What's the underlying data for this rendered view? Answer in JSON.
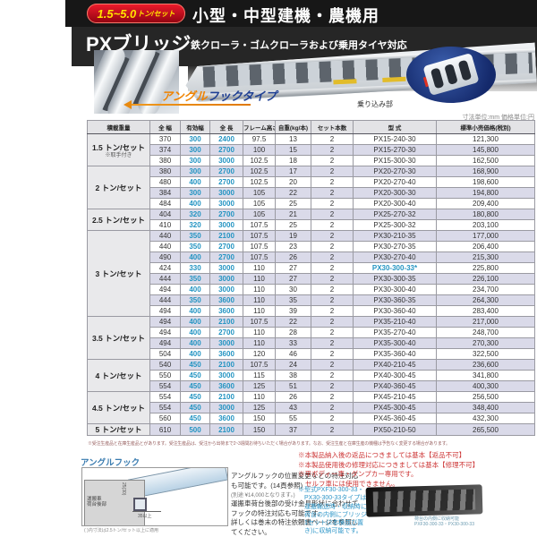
{
  "header": {
    "badge_value": "1.5~5.0",
    "badge_unit": "トン/セット",
    "category": "小型・中型建機・農機用",
    "product_name": "PXブリッジ",
    "subtitle": "鉄クローラ・ゴムクローラおよび乗用タイヤ対応",
    "type_label_orange": "アングル",
    "type_label_blue": "フックタイプ",
    "boarding_label": "乗り込み部",
    "units_note": "寸法単位:mm 価格単位:円"
  },
  "colors": {
    "badge_red": "#c00616",
    "accent_orange": "#f08300",
    "accent_navy": "#1e3f93",
    "table_blue": "#2394c2",
    "stripe_lavender": "#dadae9",
    "note_red": "#cc3333",
    "note_blue": "#2e96c8"
  },
  "table": {
    "headers": [
      "積載重量",
      "全 幅",
      "有効幅",
      "全 長",
      "フレーム高さ",
      "自重(kg/本)",
      "セット本数",
      "型 式",
      "標準小売価格(税別)"
    ],
    "groups": [
      {
        "label": "1.5 トン/セット",
        "note": "※取手付き",
        "rows": [
          [
            "370",
            "300",
            "2400",
            "97.5",
            "13",
            "2",
            "PX15-240-30",
            "121,300"
          ],
          [
            "374",
            "300",
            "2700",
            "100",
            "15",
            "2",
            "PX15-270-30",
            "145,800"
          ],
          [
            "380",
            "300",
            "3000",
            "102.5",
            "18",
            "2",
            "PX15-300-30",
            "162,500"
          ]
        ]
      },
      {
        "label": "2 トン/セット",
        "note": "",
        "rows": [
          [
            "380",
            "300",
            "2700",
            "102.5",
            "17",
            "2",
            "PX20-270-30",
            "168,900"
          ],
          [
            "480",
            "400",
            "2700",
            "102.5",
            "20",
            "2",
            "PX20-270-40",
            "198,600"
          ],
          [
            "384",
            "300",
            "3000",
            "105",
            "22",
            "2",
            "PX20-300-30",
            "194,800"
          ],
          [
            "484",
            "400",
            "3000",
            "105",
            "25",
            "2",
            "PX20-300-40",
            "209,400"
          ]
        ]
      },
      {
        "label": "2.5 トン/セット",
        "note": "",
        "rows": [
          [
            "404",
            "320",
            "2700",
            "105",
            "21",
            "2",
            "PX25-270-32",
            "180,800"
          ],
          [
            "410",
            "320",
            "3000",
            "107.5",
            "25",
            "2",
            "PX25-300-32",
            "203,100"
          ]
        ]
      },
      {
        "label": "3 トン/セット",
        "note": "",
        "rows": [
          [
            "440",
            "350",
            "2100",
            "107.5",
            "19",
            "2",
            "PX30-210-35",
            "177,000"
          ],
          [
            "440",
            "350",
            "2700",
            "107.5",
            "23",
            "2",
            "PX30-270-35",
            "206,400"
          ],
          [
            "490",
            "400",
            "2700",
            "107.5",
            "26",
            "2",
            "PX30-270-40",
            "215,300"
          ],
          [
            "424",
            "330",
            "3000",
            "110",
            "27",
            "2",
            "PX30-300-33*",
            "225,800"
          ],
          [
            "444",
            "350",
            "3000",
            "110",
            "27",
            "2",
            "PX30-300-35",
            "226,100"
          ],
          [
            "494",
            "400",
            "3000",
            "110",
            "30",
            "2",
            "PX30-300-40",
            "234,700"
          ],
          [
            "444",
            "350",
            "3600",
            "110",
            "35",
            "2",
            "PX30-360-35",
            "264,300"
          ],
          [
            "494",
            "400",
            "3600",
            "110",
            "39",
            "2",
            "PX30-360-40",
            "283,400"
          ]
        ]
      },
      {
        "label": "3.5 トン/セット",
        "note": "",
        "rows": [
          [
            "494",
            "400",
            "2100",
            "107.5",
            "22",
            "2",
            "PX35-210-40",
            "217,000"
          ],
          [
            "494",
            "400",
            "2700",
            "110",
            "28",
            "2",
            "PX35-270-40",
            "248,700"
          ],
          [
            "494",
            "400",
            "3000",
            "110",
            "33",
            "2",
            "PX35-300-40",
            "270,300"
          ],
          [
            "504",
            "400",
            "3600",
            "120",
            "46",
            "2",
            "PX35-360-40",
            "322,500"
          ]
        ]
      },
      {
        "label": "4 トン/セット",
        "note": "",
        "rows": [
          [
            "540",
            "450",
            "2100",
            "107.5",
            "24",
            "2",
            "PX40-210-45",
            "236,600"
          ],
          [
            "550",
            "450",
            "3000",
            "115",
            "38",
            "2",
            "PX40-300-45",
            "341,800"
          ],
          [
            "554",
            "450",
            "3600",
            "125",
            "51",
            "2",
            "PX40-360-45",
            "400,300"
          ]
        ]
      },
      {
        "label": "4.5 トン/セット",
        "note": "",
        "rows": [
          [
            "554",
            "450",
            "2100",
            "110",
            "26",
            "2",
            "PX45-210-45",
            "256,500"
          ],
          [
            "554",
            "450",
            "3000",
            "125",
            "43",
            "2",
            "PX45-300-45",
            "348,400"
          ],
          [
            "560",
            "450",
            "3600",
            "150",
            "55",
            "2",
            "PX45-360-45",
            "432,300"
          ]
        ]
      },
      {
        "label": "5 トン/セット",
        "note": "",
        "rows": [
          [
            "610",
            "500",
            "2100",
            "150",
            "37",
            "2",
            "PX50-210-50",
            "265,500"
          ]
        ]
      }
    ],
    "footnote": "※受注生産品と在庫生産品とがあります。受注生産品は、受注から出荷まで2~3週間お待ちいただく場合があります。なお、受注生産と在庫生産の機種は予告なく変更する場合があります。"
  },
  "angle_hook": {
    "title": "アングルフック",
    "para1": [
      "アングルフックの位置変更などの特注対応",
      "も可能です。(14頁参照)"
    ],
    "para1_note": "(別途 ¥14,000となります。)",
    "para2": [
      "運搬車荷台後部の受け金具形状に合わせて",
      "フックの特注対応も可能です。",
      "詳しくは巻末の特注依頼書ページを参照し",
      "てください。"
    ],
    "diagram": {
      "bed_label_1": "運搬車",
      "bed_label_2": "荷台後部",
      "dim_vertical": "25(30)",
      "dim_horizontal": "35以上",
      "caption": "( )内寸法は2.5トン/セット以上に適用"
    }
  },
  "notes": {
    "red": [
      "※本製品納入後の返品につきましては基本【返品不可】",
      "※本製品使用後の修理対応につきましては基本【修理不可】",
      "※平ボディー車・ダンプカー専用です。",
      "セルフ車には使用できません。"
    ],
    "blue": [
      "※型式PXF30-300-33・",
      "PX30-300-33タイプは、",
      "運搬輸送時・収納時に",
      "荷台の内側にブリッジ",
      "1セット(2本横並び置",
      "き)に収納可能です。"
    ],
    "crawler_caption": [
      "荷台の内側に収納可能",
      "PXF30-300-33・PX30-300-33"
    ]
  }
}
